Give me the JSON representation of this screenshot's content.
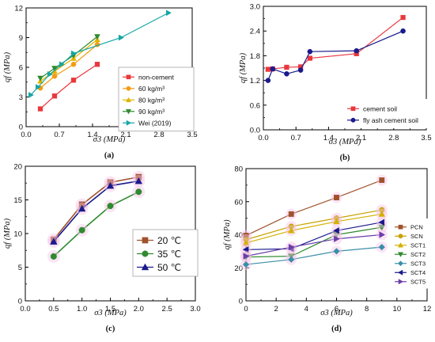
{
  "chart_data": [
    {
      "type": "line",
      "panel_label": "(a)",
      "xlabel": "σ3 (MPa)",
      "ylabel": "qf (MPa)",
      "xlim": [
        0,
        3.5
      ],
      "ylim": [
        0,
        12
      ],
      "xticks": [
        "0.0",
        "0.7",
        "1.4",
        "2.1",
        "2.8",
        "3.5"
      ],
      "yticks": [
        "0",
        "3",
        "6",
        "9",
        "12"
      ],
      "legend_position": "bottom-right",
      "series": [
        {
          "name": "non-cement",
          "color": "#e8383d",
          "marker": "square",
          "x": [
            0.3,
            0.6,
            1.0,
            1.5
          ],
          "y": [
            1.8,
            3.1,
            4.7,
            6.3
          ]
        },
        {
          "name": "60 kg/m³",
          "color": "#f39c12",
          "marker": "circle",
          "x": [
            0.3,
            0.6,
            1.0,
            1.5
          ],
          "y": [
            3.9,
            5.1,
            6.3,
            8.3
          ]
        },
        {
          "name": "80 kg/m³",
          "color": "#e0b400",
          "marker": "triangle-up",
          "x": [
            0.3,
            0.6,
            1.0,
            1.5
          ],
          "y": [
            4.6,
            5.6,
            6.9,
            8.8
          ]
        },
        {
          "name": "90 kg/m³",
          "color": "#2e8b2e",
          "marker": "triangle-down",
          "x": [
            0.3,
            0.6,
            1.0,
            1.5
          ],
          "y": [
            4.9,
            5.9,
            7.2,
            9.1
          ]
        },
        {
          "name": "Wei (2019)",
          "color": "#16a6a6",
          "marker": "triangle-right",
          "x": [
            0.1,
            0.25,
            0.5,
            0.75,
            1.0,
            2.0,
            3.0
          ],
          "y": [
            3.2,
            4.0,
            5.3,
            6.3,
            7.4,
            9.0,
            11.5
          ]
        }
      ]
    },
    {
      "type": "line",
      "panel_label": "(b)",
      "xlabel": "σ3 (MPa)",
      "ylabel": "qf (MPa)",
      "xlim": [
        0,
        3.5
      ],
      "ylim": [
        0,
        3.0
      ],
      "xticks": [
        "0.0",
        "0.7",
        "1.4",
        "2.1",
        "2.8",
        "3.5"
      ],
      "yticks": [
        "0.0",
        "0.6",
        "1.2",
        "1.8",
        "2.4",
        "3.0"
      ],
      "legend_position": "bottom-right",
      "series": [
        {
          "name": "cement soil",
          "color": "#e8383d",
          "marker": "square",
          "x": [
            0.1,
            0.2,
            0.5,
            0.8,
            1.0,
            2.0,
            3.0
          ],
          "y": [
            1.47,
            1.48,
            1.52,
            1.53,
            1.74,
            1.85,
            2.73
          ]
        },
        {
          "name": "fly ash cement soil",
          "color": "#1a1a8c",
          "marker": "circle",
          "x": [
            0.1,
            0.2,
            0.5,
            0.8,
            1.0,
            2.0,
            3.0
          ],
          "y": [
            1.2,
            1.48,
            1.36,
            1.45,
            1.9,
            1.92,
            2.4
          ]
        }
      ]
    },
    {
      "type": "line",
      "panel_label": "(c)",
      "xlabel": "σ3 (MPa)",
      "ylabel": "qf (MPa)",
      "xlim": [
        0,
        3.0
      ],
      "ylim": [
        0,
        20
      ],
      "xticks": [
        "0.0",
        "0.5",
        "1.0",
        "1.5",
        "2.0",
        "2.5",
        "3.0"
      ],
      "yticks": [
        "0",
        "5",
        "10",
        "15",
        "20"
      ],
      "legend_position": "bottom-right",
      "series": [
        {
          "name": "20 ℃",
          "color": "#a0522d",
          "marker": "square",
          "x": [
            0.5,
            1.0,
            1.5,
            2.0
          ],
          "y": [
            9.1,
            14.3,
            17.6,
            18.4
          ]
        },
        {
          "name": "35 ℃",
          "color": "#2e8b2e",
          "marker": "circle",
          "x": [
            0.5,
            1.0,
            1.5,
            2.0
          ],
          "y": [
            6.6,
            10.5,
            14.1,
            16.2
          ]
        },
        {
          "name": "50 ℃",
          "color": "#1a1a8c",
          "marker": "triangle-up",
          "x": [
            0.5,
            1.0,
            1.5,
            2.0
          ],
          "y": [
            8.8,
            13.7,
            17.1,
            17.8
          ]
        }
      ]
    },
    {
      "type": "line",
      "panel_label": "(d)",
      "xlabel": "σ3 (MPa)",
      "ylabel": "qf (MPa)",
      "xlim": [
        0,
        12
      ],
      "ylim": [
        0,
        80
      ],
      "xticks": [
        "0",
        "2",
        "4",
        "6",
        "8",
        "10",
        "12"
      ],
      "yticks": [
        "0",
        "20",
        "40",
        "60",
        "80"
      ],
      "legend_position": "right",
      "series": [
        {
          "name": "PCN",
          "color": "#a0522d",
          "marker": "square",
          "x": [
            0,
            3,
            6,
            9
          ],
          "y": [
            39.5,
            52.5,
            62.5,
            73.0
          ]
        },
        {
          "name": "SCN",
          "color": "#c8a200",
          "marker": "circle",
          "x": [
            0,
            3,
            6,
            9
          ],
          "y": [
            37.0,
            45.0,
            50.0,
            55.0
          ]
        },
        {
          "name": "SCT1",
          "color": "#d4b000",
          "marker": "triangle-up",
          "x": [
            0,
            3,
            6,
            9
          ],
          "y": [
            35.0,
            42.5,
            48.0,
            52.5
          ]
        },
        {
          "name": "SCT2",
          "color": "#2e8b2e",
          "marker": "triangle-down",
          "x": [
            0,
            3,
            6,
            9
          ],
          "y": [
            26.5,
            27.0,
            40.0,
            44.5
          ]
        },
        {
          "name": "SCT3",
          "color": "#3a8fa8",
          "marker": "diamond",
          "x": [
            0,
            3,
            6,
            9
          ],
          "y": [
            22.0,
            25.0,
            30.0,
            32.5
          ]
        },
        {
          "name": "SCT4",
          "color": "#1a1a8c",
          "marker": "triangle-left",
          "x": [
            0,
            3,
            6,
            9
          ],
          "y": [
            31.0,
            31.5,
            42.5,
            47.5
          ]
        },
        {
          "name": "SCT5",
          "color": "#6a3da8",
          "marker": "triangle-right",
          "x": [
            0,
            3,
            6,
            9
          ],
          "y": [
            27.0,
            32.5,
            37.5,
            40.0
          ]
        }
      ]
    }
  ]
}
